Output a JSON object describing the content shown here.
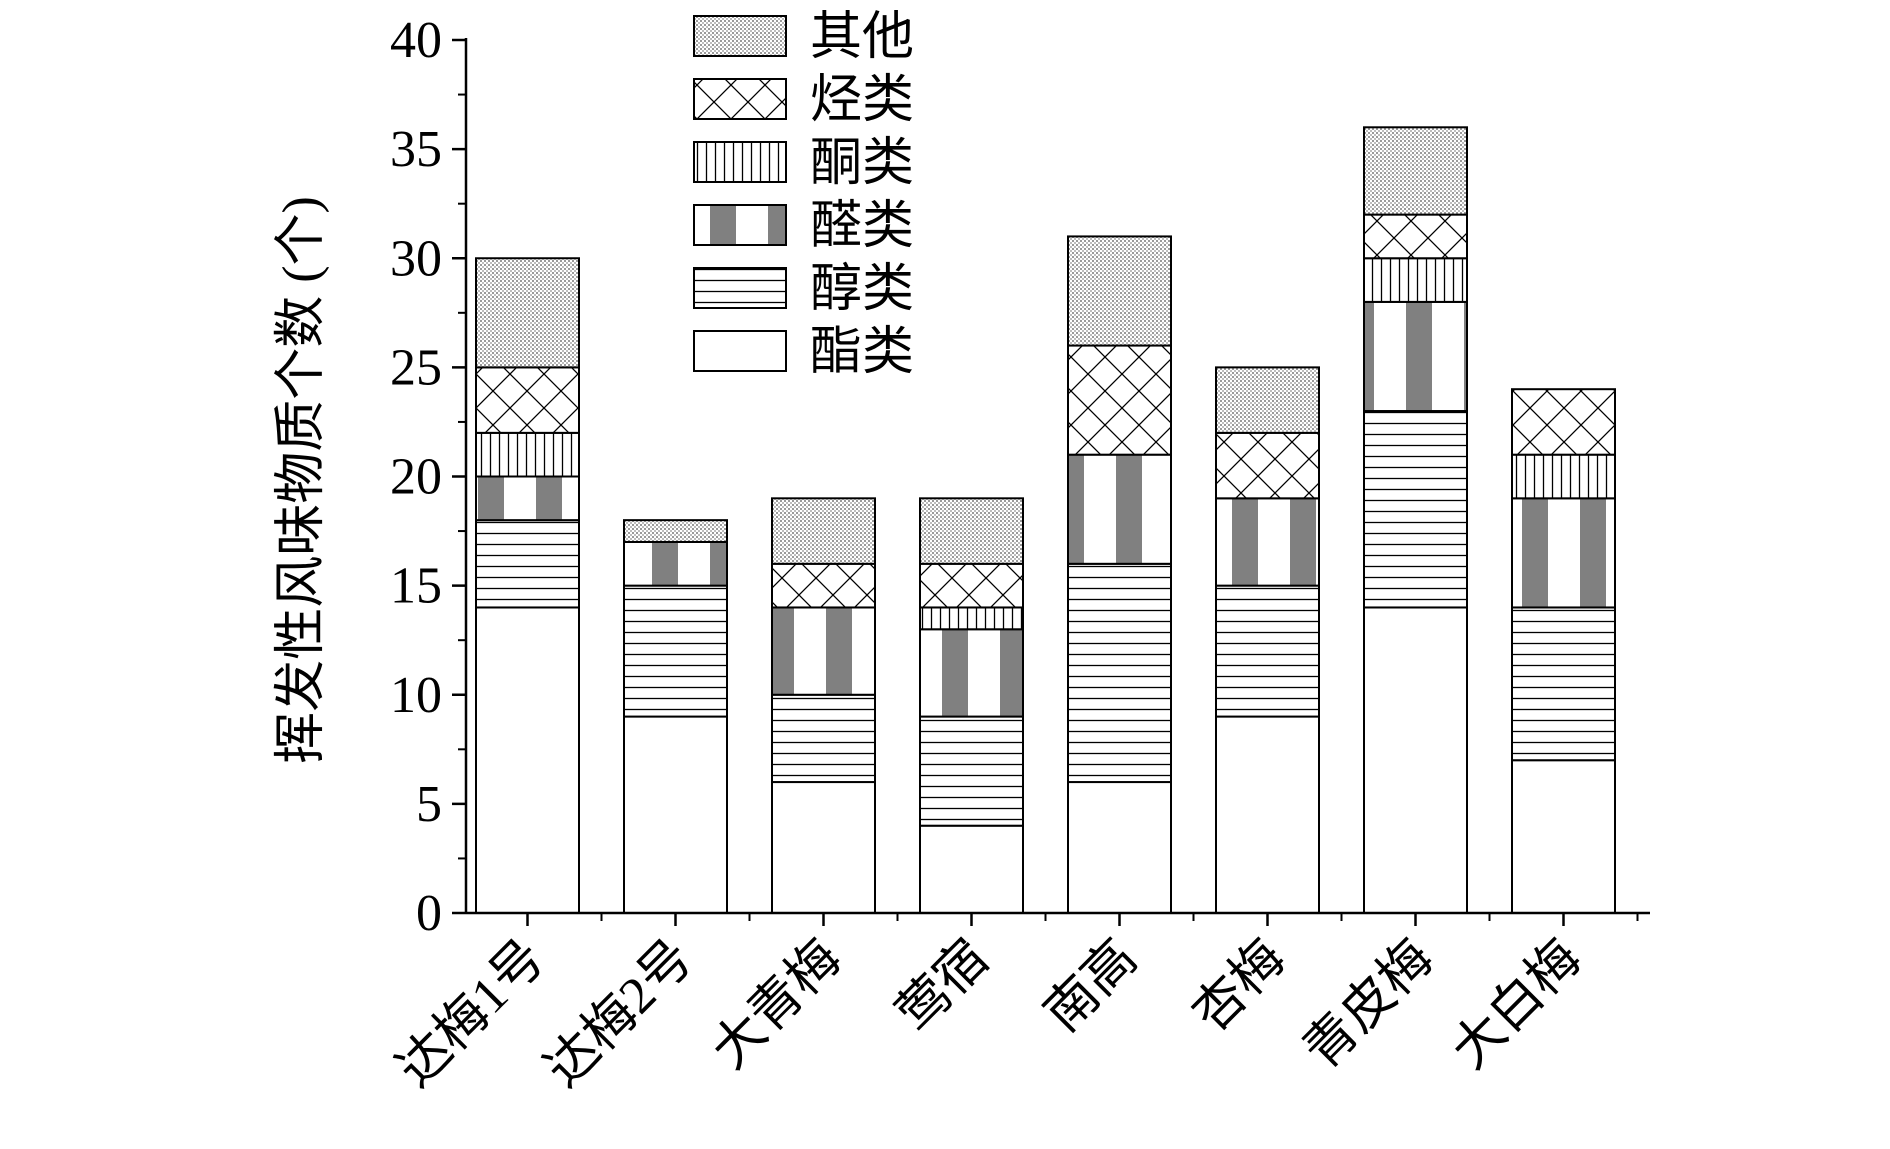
{
  "chart_data": {
    "type": "bar",
    "stacked": true,
    "ylabel": "挥发性风味物质个数 (个)",
    "xlabel": "",
    "ylim": [
      0,
      40
    ],
    "yticks": [
      0,
      5,
      10,
      15,
      20,
      25,
      30,
      35,
      40
    ],
    "categories": [
      "达梅1号",
      "达梅2号",
      "大青梅",
      "莺宿",
      "南高",
      "杏梅",
      "青皮梅",
      "大白梅"
    ],
    "series": [
      {
        "name": "酯类",
        "pattern": "blank",
        "values": [
          14,
          9,
          6,
          4,
          6,
          9,
          14,
          7
        ]
      },
      {
        "name": "醇类",
        "pattern": "horizontal-lines",
        "values": [
          4,
          6,
          4,
          5,
          10,
          6,
          9,
          7
        ]
      },
      {
        "name": "醛类",
        "pattern": "gray-blocks",
        "values": [
          2,
          2,
          4,
          4,
          5,
          4,
          5,
          5
        ]
      },
      {
        "name": "酮类",
        "pattern": "vertical-lines",
        "values": [
          2,
          0,
          0,
          1,
          0,
          0,
          2,
          2
        ]
      },
      {
        "name": "烃类",
        "pattern": "crosshatch",
        "values": [
          3,
          0,
          2,
          2,
          5,
          3,
          2,
          3
        ]
      },
      {
        "name": "其他",
        "pattern": "dots",
        "values": [
          5,
          1,
          3,
          3,
          5,
          3,
          4,
          0
        ]
      }
    ],
    "legend_order": [
      "其他",
      "烃类",
      "酮类",
      "醛类",
      "醇类",
      "酯类"
    ],
    "legend_position": "top-center",
    "grid": false
  }
}
